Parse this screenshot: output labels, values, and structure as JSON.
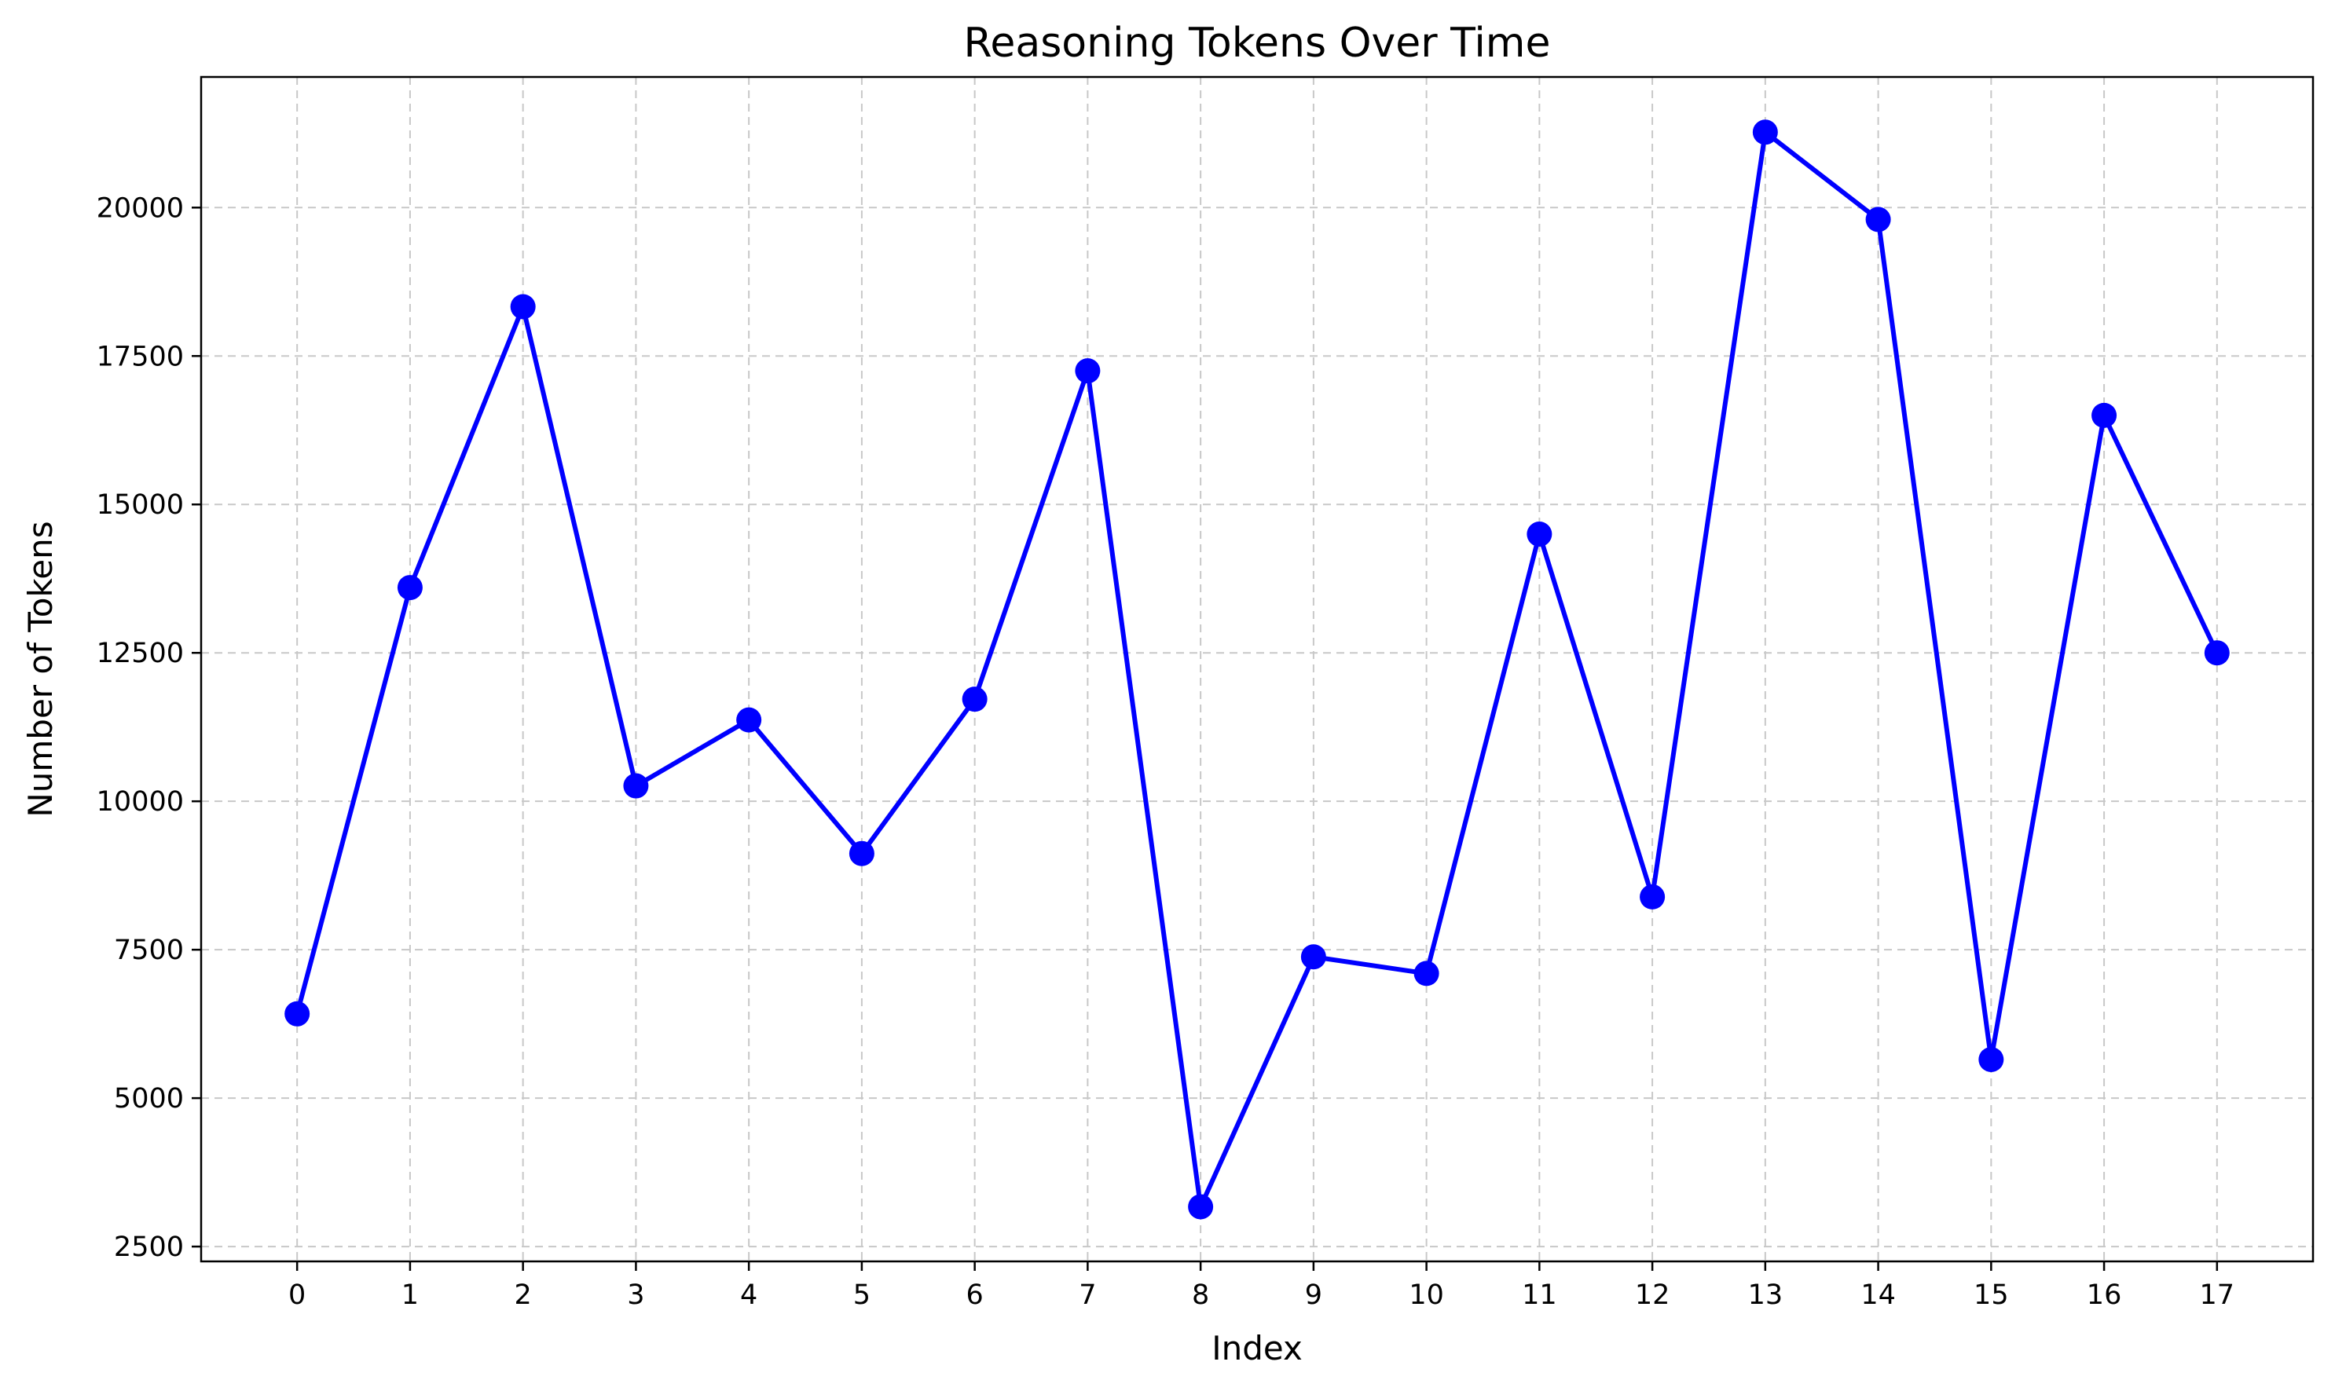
{
  "chart_data": {
    "type": "line",
    "title": "Reasoning Tokens Over Time",
    "xlabel": "Index",
    "ylabel": "Number of Tokens",
    "x": [
      0,
      1,
      2,
      3,
      4,
      5,
      6,
      7,
      8,
      9,
      10,
      11,
      12,
      13,
      14,
      15,
      16,
      17
    ],
    "series": [
      {
        "values": [
          6420,
          13600,
          18330,
          10260,
          11370,
          9120,
          11720,
          17250,
          3170,
          7380,
          7100,
          14500,
          8390,
          21270,
          19800,
          5650,
          16500,
          12500
        ],
        "color": "#0000ff",
        "marker": "circle"
      }
    ],
    "xticks": [
      "0",
      "1",
      "2",
      "3",
      "4",
      "5",
      "6",
      "7",
      "8",
      "9",
      "10",
      "11",
      "12",
      "13",
      "14",
      "15",
      "16",
      "17"
    ],
    "yticks": [
      "2500",
      "5000",
      "7500",
      "10000",
      "12500",
      "15000",
      "17500",
      "20000"
    ],
    "xlim": [
      -0.85,
      17.85
    ],
    "ylim": [
      2250,
      22200
    ],
    "grid": true
  }
}
